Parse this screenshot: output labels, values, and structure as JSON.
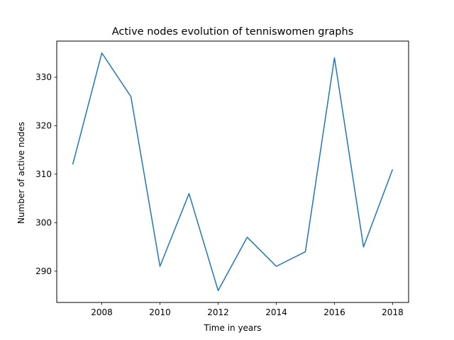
{
  "chart_data": {
    "type": "line",
    "title": "Active nodes evolution of tenniswomen graphs",
    "xlabel": "Time in years",
    "ylabel": "Number of active nodes",
    "x": [
      2007,
      2008,
      2009,
      2010,
      2011,
      2012,
      2013,
      2014,
      2015,
      2016,
      2017,
      2018
    ],
    "series": [
      {
        "values": [
          312,
          335,
          326,
          291,
          306,
          286,
          297,
          291,
          294,
          334,
          295,
          311
        ]
      }
    ],
    "xticks": [
      2008,
      2010,
      2012,
      2014,
      2016,
      2018
    ],
    "yticks": [
      290,
      300,
      310,
      320,
      330
    ],
    "xlim": [
      2006.45,
      2018.55
    ],
    "ylim": [
      283.55,
      337.45
    ],
    "grid": false,
    "line_color": "#1f77b4"
  }
}
